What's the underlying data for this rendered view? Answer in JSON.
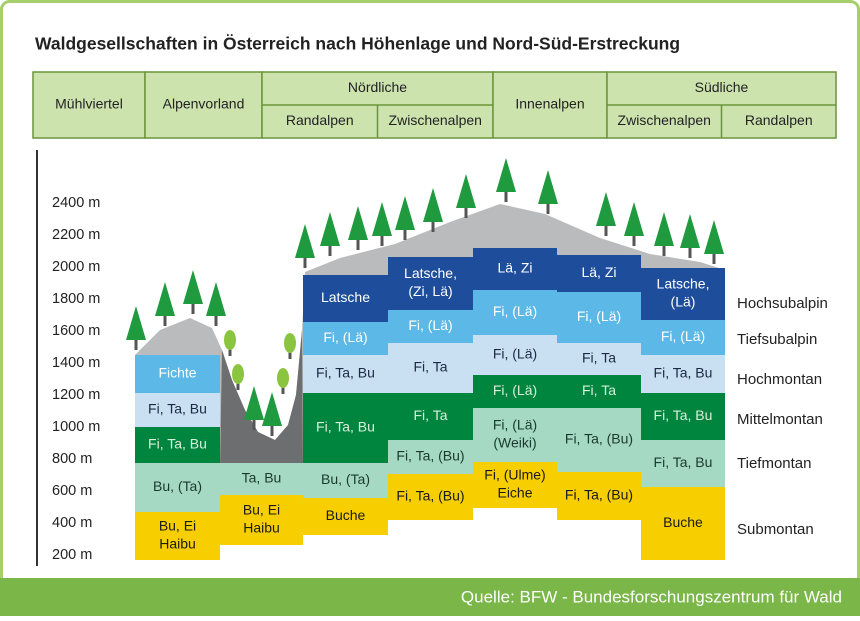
{
  "title": "Waldgesellschaften in Österreich nach Höhenlage und Nord-Süd-Erstreckung",
  "header": {
    "columns": [
      {
        "label": "Mühlviertel"
      },
      {
        "label": "Alpenvorland"
      },
      {
        "label": "Nördliche",
        "sub": [
          "Randalpen",
          "Zwischenalpen"
        ]
      },
      {
        "label": "Innenalpen"
      },
      {
        "label": "Südliche",
        "sub": [
          "Zwischenalpen",
          "Randalpen"
        ]
      }
    ]
  },
  "altitudes": [
    "2400 m",
    "2200 m",
    "2000 m",
    "1800 m",
    "1600 m",
    "1400 m",
    "1200 m",
    "1000 m",
    "800 m",
    "600 m",
    "400 m",
    "200 m"
  ],
  "zones": [
    "Hochsubalpin",
    "Tiefsubalpin",
    "Hochmontan",
    "Mittelmontan",
    "Tiefmontan",
    "Submontan"
  ],
  "columns": [
    {
      "blocks": [
        [
          "Fichte"
        ],
        [
          "Fi, Ta, Bu"
        ],
        [
          "Fi, Ta, Bu"
        ],
        [
          "Bu, (Ta)"
        ],
        [
          "Bu, Ei",
          "Haibu"
        ]
      ]
    },
    {
      "blocks": [
        [
          "Ta, Bu"
        ],
        [
          "Bu, Ei",
          "Haibu"
        ]
      ]
    },
    {
      "blocks": [
        [
          "Latsche"
        ],
        [
          "Fi, (Lä)"
        ],
        [
          "Fi, Ta, Bu"
        ],
        [
          "Fi, Ta, Bu"
        ],
        [
          "Bu, (Ta)"
        ],
        [
          "Buche"
        ]
      ]
    },
    {
      "blocks": [
        [
          "Latsche,",
          "(Zi, Lä)"
        ],
        [
          "Fi, (Lä)"
        ],
        [
          "Fi, Ta"
        ],
        [
          "Fi, Ta"
        ],
        [
          "Fi, Ta, (Bu)"
        ],
        [
          "Fi, Ta, (Bu)"
        ]
      ]
    },
    {
      "blocks": [
        [
          "Lä, Zi"
        ],
        [
          "Fi, (Lä)"
        ],
        [
          "Fi, (Lä)"
        ],
        [
          "Fi, (Lä)"
        ],
        [
          "Fi, (Lä)",
          "(Weiki)"
        ],
        [
          "Fi, (Ulme)",
          "Eiche"
        ]
      ]
    },
    {
      "blocks": [
        [
          "Lä, Zi"
        ],
        [
          "Fi, (Lä)"
        ],
        [
          "Fi, Ta"
        ],
        [
          "Fi, Ta"
        ],
        [
          "Fi, Ta, (Bu)"
        ],
        [
          "Fi, Ta, (Bu)"
        ]
      ]
    },
    {
      "blocks": [
        [
          "Latsche,",
          "(Lä)"
        ],
        [
          "Fi, (Lä)"
        ],
        [
          "Fi, Ta, Bu"
        ],
        [
          "Fi, Ta, Bu"
        ],
        [
          "Fi, Ta, Bu"
        ],
        [
          "Buche"
        ]
      ]
    }
  ],
  "source": "Quelle: BFW - Bundesforschungszentrum für Wald"
}
